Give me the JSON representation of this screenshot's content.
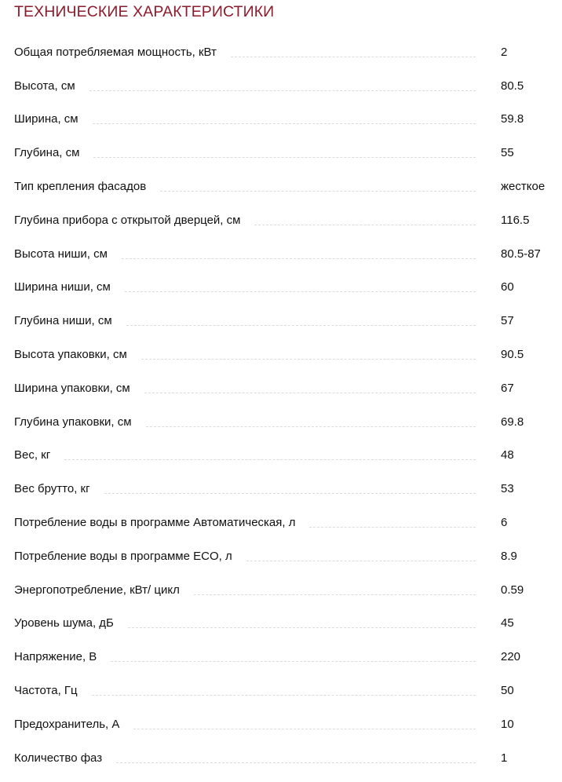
{
  "title": "ТЕХНИЧЕСКИЕ ХАРАКТЕРИСТИКИ",
  "specs": [
    {
      "label": "Общая потребляемая мощность, кВт",
      "value": "2"
    },
    {
      "label": "Высота, см",
      "value": "80.5"
    },
    {
      "label": "Ширина, см",
      "value": "59.8"
    },
    {
      "label": "Глубина, см",
      "value": "55"
    },
    {
      "label": "Тип крепления фасадов",
      "value": "жесткое"
    },
    {
      "label": "Глубина прибора с открытой дверцей, см",
      "value": "116.5"
    },
    {
      "label": "Высота ниши, см",
      "value": "80.5-87"
    },
    {
      "label": "Ширина ниши, см",
      "value": "60"
    },
    {
      "label": "Глубина ниши, см",
      "value": "57"
    },
    {
      "label": "Высота упаковки, см",
      "value": "90.5"
    },
    {
      "label": "Ширина упаковки, см",
      "value": "67"
    },
    {
      "label": "Глубина упаковки, см",
      "value": "69.8"
    },
    {
      "label": "Вес, кг",
      "value": "48"
    },
    {
      "label": "Вес брутто, кг",
      "value": "53"
    },
    {
      "label": "Потребление воды в программе Автоматическая, л",
      "value": "6"
    },
    {
      "label": "Потребление воды в программе ECO, л",
      "value": "8.9"
    },
    {
      "label": "Энергопотребление, кВт/ цикл",
      "value": "0.59"
    },
    {
      "label": "Уровень шума, дБ",
      "value": "45"
    },
    {
      "label": "Напряжение, В",
      "value": "220"
    },
    {
      "label": "Частота, Гц",
      "value": "50"
    },
    {
      "label": "Предохранитель, А",
      "value": "10"
    },
    {
      "label": "Количество фаз",
      "value": "1"
    }
  ]
}
